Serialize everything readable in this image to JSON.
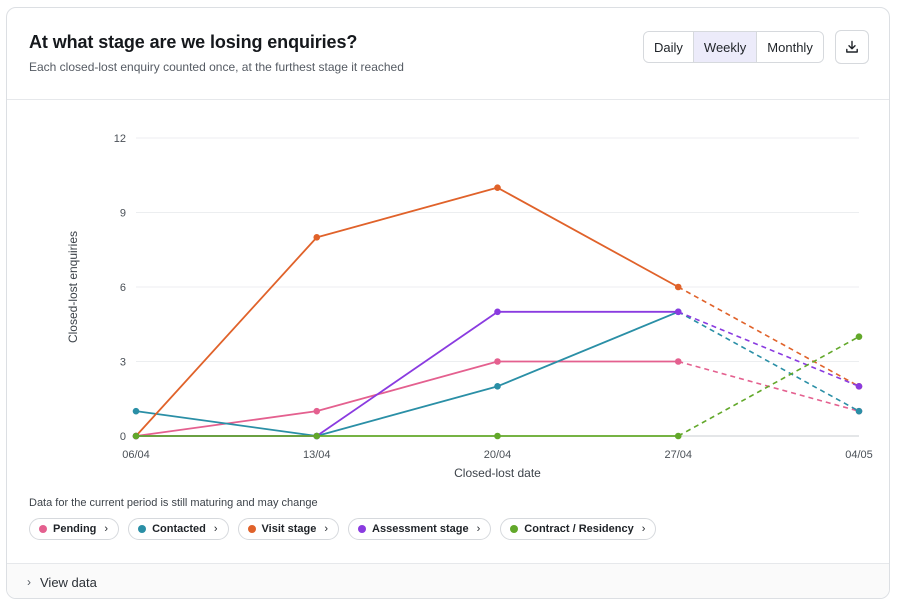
{
  "header": {
    "title": "At what stage are we losing enquiries?",
    "subtitle": "Each closed-lost enquiry counted once, at the furthest stage it reached"
  },
  "period_toggle": {
    "options": [
      "Daily",
      "Weekly",
      "Monthly"
    ],
    "selected": "Weekly"
  },
  "download_icon": "download-icon",
  "note": "Data for the current period is still maturing and may change",
  "footer": {
    "label": "View data"
  },
  "colors": {
    "pending": "#e4608f",
    "contacted": "#2a8fa6",
    "visit": "#e0622a",
    "assessment": "#8a3be0",
    "contract": "#62a82a"
  },
  "chart_data": {
    "type": "line",
    "xlabel": "Closed-lost date",
    "ylabel": "Closed-lost enquiries",
    "categories": [
      "06/04",
      "13/04",
      "20/04",
      "27/04",
      "04/05"
    ],
    "yticks": [
      0,
      3,
      6,
      9,
      12
    ],
    "ylim": [
      0,
      12
    ],
    "grid": true,
    "incomplete_last_period": true,
    "series": [
      {
        "name": "Pending",
        "color": "#e4608f",
        "values": [
          0,
          1,
          3,
          3,
          1
        ]
      },
      {
        "name": "Contacted",
        "color": "#2a8fa6",
        "values": [
          1,
          0,
          2,
          5,
          1
        ]
      },
      {
        "name": "Visit stage",
        "color": "#e0622a",
        "values": [
          0,
          8,
          10,
          6,
          2
        ]
      },
      {
        "name": "Assessment stage",
        "color": "#8a3be0",
        "values": [
          0,
          0,
          5,
          5,
          2
        ]
      },
      {
        "name": "Contract / Residency",
        "color": "#62a82a",
        "values": [
          0,
          0,
          0,
          0,
          4
        ]
      }
    ]
  }
}
